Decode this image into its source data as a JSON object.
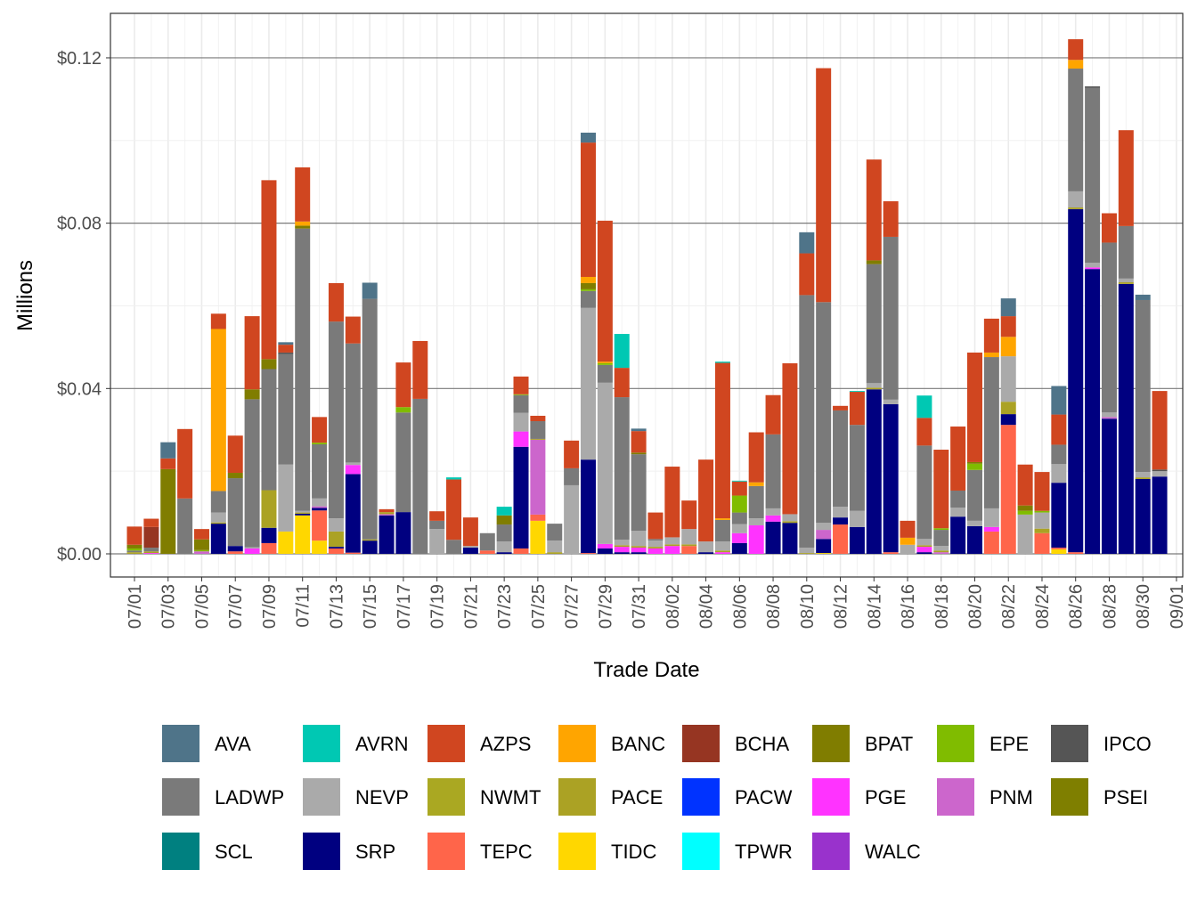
{
  "chart_data": {
    "type": "bar",
    "stacked": true,
    "xlabel": "Trade Date",
    "ylabel": "Millions",
    "ylim": [
      -0.0056,
      0.1308
    ],
    "y_ticks": [
      0,
      0.04,
      0.08,
      0.12
    ],
    "y_tick_labels": [
      "$0.00",
      "$0.04",
      "$0.08",
      "$0.12"
    ],
    "x_tick_labels": [
      "07/01",
      "07/03",
      "07/05",
      "07/07",
      "07/09",
      "07/11",
      "07/13",
      "07/15",
      "07/17",
      "07/19",
      "07/21",
      "07/23",
      "07/25",
      "07/27",
      "07/29",
      "07/31",
      "08/02",
      "08/04",
      "08/06",
      "08/08",
      "08/10",
      "08/12",
      "08/14",
      "08/16",
      "08/18",
      "08/20",
      "08/22",
      "08/24",
      "08/26",
      "08/28",
      "08/30",
      "09/01"
    ],
    "grid": true,
    "legend_position": "bottom",
    "legend": [
      "AVA",
      "AVRN",
      "AZPS",
      "BANC",
      "BCHA",
      "BPAT",
      "EPE",
      "IPCO",
      "LADWP",
      "NEVP",
      "NWMT",
      "PACE",
      "PACW",
      "PGE",
      "PNM",
      "PSEI",
      "SCL",
      "SRP",
      "TEPC",
      "TIDC",
      "TPWR",
      "WALC"
    ],
    "colors": {
      "AVA": "#4F7489",
      "AVRN": "#00C8B3",
      "AZPS": "#D04620",
      "BANC": "#FFA500",
      "BCHA": "#963522",
      "BPAT": "#807D00",
      "EPE": "#80BC00",
      "IPCO": "#555555",
      "LADWP": "#7A7A7A",
      "NEVP": "#AAAAAA",
      "NWMT": "#AAA822",
      "PACE": "#ABA224",
      "PACW": "#0033FF",
      "PGE": "#FF33FF",
      "PNM": "#CC66CC",
      "PSEI": "#7F7F00",
      "SCL": "#008080",
      "SRP": "#000080",
      "TEPC": "#FF654A",
      "TIDC": "#FFD700",
      "TPWR": "#00FFFF",
      "WALC": "#9932CC"
    },
    "bars": [
      {
        "date": "07/01",
        "segments": {
          "BPAT": 0.0009,
          "PACE": 0.0004,
          "LADWP": 0.0004,
          "EPE": 0.0005,
          "AZPS": 0.0044
        }
      },
      {
        "date": "07/02",
        "segments": {
          "PGE": 0.0002,
          "PACE": 0.0004,
          "LADWP": 0.0009,
          "BCHA": 0.005,
          "AZPS": 0.002
        }
      },
      {
        "date": "07/03",
        "segments": {
          "BPAT": 0.0205,
          "AZPS": 0.0026,
          "AVA": 0.0039
        }
      },
      {
        "date": "07/04",
        "segments": {
          "LADWP": 0.0134,
          "AZPS": 0.0168
        }
      },
      {
        "date": "07/05",
        "segments": {
          "BPAT": 0.0026,
          "PNM": 0.0006,
          "EPE": 0.0003,
          "AZPS": 0.0025
        }
      },
      {
        "date": "07/06",
        "segments": {
          "SRP": 0.0073,
          "PACE": 0.0003,
          "NEVP": 0.0024,
          "LADWP": 0.0052,
          "BANC": 0.0392,
          "AZPS": 0.0037
        }
      },
      {
        "date": "07/07",
        "segments": {
          "TEPC": 0.0006,
          "SRP": 0.0013,
          "BPAT": 0.0013,
          "LADWP": 0.0164,
          "AZPS": 0.009
        }
      },
      {
        "date": "07/08",
        "segments": {
          "BPAT": 0.0024,
          "PGE": 0.0013,
          "NEVP": 0.0003,
          "LADWP": 0.0358,
          "AZPS": 0.0177
        }
      },
      {
        "date": "07/09",
        "segments": {
          "TEPC": 0.0026,
          "SRP": 0.0037,
          "BPAT": 0.0024,
          "PACE": 0.0091,
          "LADWP": 0.0293,
          "AZPS": 0.0433
        }
      },
      {
        "date": "07/10",
        "segments": {
          "TIDC": 0.0054,
          "NEVP": 0.0162,
          "LADWP": 0.0267,
          "IPCO": 0.0004,
          "AZPS": 0.0019,
          "AVA": 0.0006
        }
      },
      {
        "date": "07/11",
        "segments": {
          "TIDC": 0.0093,
          "SRP": 0.0004,
          "BPAT": 0.0007,
          "PACE": 0.0003,
          "NEVP": 0.0004,
          "LADWP": 0.0683,
          "BANC": 0.001,
          "AZPS": 0.0131
        }
      },
      {
        "date": "07/12",
        "segments": {
          "TIDC": 0.0032,
          "TEPC": 0.0073,
          "SRP": 0.0006,
          "PNM": 0.0004,
          "NEVP": 0.0019,
          "LADWP": 0.0131,
          "EPE": 0.0004,
          "AZPS": 0.0062
        }
      },
      {
        "date": "07/13",
        "segments": {
          "TEPC": 0.0013,
          "SRP": 0.0004,
          "PACE": 0.0037,
          "NEVP": 0.0032,
          "LADWP": 0.0476,
          "AZPS": 0.0093
        }
      },
      {
        "date": "07/14",
        "segments": {
          "TEPC": 0.0003,
          "SRP": 0.019,
          "PGE": 0.0022,
          "NEVP": 0.0006,
          "LADWP": 0.0288,
          "AZPS": 0.0065
        }
      },
      {
        "date": "07/15",
        "segments": {
          "SRP": 0.0032,
          "PACE": 0.0003,
          "LADWP": 0.0582,
          "AVA": 0.0039
        }
      },
      {
        "date": "07/16",
        "segments": {
          "SRP": 0.0093,
          "PNM": 0.0003,
          "PACE": 0.0005,
          "AZPS": 0.0007
        }
      },
      {
        "date": "07/17",
        "segments": {
          "SRP": 0.0101,
          "LADWP": 0.0241,
          "EPE": 0.0013,
          "AZPS": 0.0108
        }
      },
      {
        "date": "07/18",
        "segments": {
          "LADWP": 0.0375,
          "AZPS": 0.014
        }
      },
      {
        "date": "07/19",
        "segments": {
          "NEVP": 0.006,
          "LADWP": 0.002,
          "AZPS": 0.0023
        }
      },
      {
        "date": "07/20",
        "segments": {
          "LADWP": 0.0034,
          "AZPS": 0.0146,
          "AVRN": 0.0005
        }
      },
      {
        "date": "07/21",
        "segments": {
          "SRP": 0.0015,
          "NEVP": 0.0004,
          "AZPS": 0.0069
        }
      },
      {
        "date": "07/22",
        "segments": {
          "TEPC": 0.0008,
          "LADWP": 0.0042
        }
      },
      {
        "date": "07/23",
        "segments": {
          "SRP": 0.0004,
          "BPAT": 0.0022,
          "NEVP": 0.0026,
          "LADWP": 0.0041,
          "AVRN": 0.0021
        }
      },
      {
        "date": "07/24",
        "segments": {
          "TEPC": 0.0013,
          "SRP": 0.0246,
          "PGE": 0.0037,
          "NEVP": 0.0045,
          "LADWP": 0.0043,
          "EPE": 0.0002,
          "AZPS": 0.0043
        }
      },
      {
        "date": "07/25",
        "segments": {
          "TIDC": 0.008,
          "TEPC": 0.0015,
          "PNM": 0.0181,
          "PACE": 0.0002,
          "LADWP": 0.0043,
          "AZPS": 0.0013
        }
      },
      {
        "date": "07/26",
        "segments": {
          "PACE": 0.0004,
          "NEVP": 0.0028,
          "LADWP": 0.0041
        }
      },
      {
        "date": "07/27",
        "segments": {
          "NEVP": 0.0166,
          "LADWP": 0.0041,
          "AZPS": 0.0067
        }
      },
      {
        "date": "07/28",
        "segments": {
          "TEPC": 0.0002,
          "SRP": 0.0226,
          "BPAT": 0.0015,
          "NEVP": 0.0367,
          "LADWP": 0.0041,
          "EPE": 0.0004,
          "BANC": 0.0015,
          "AZPS": 0.0325,
          "AVA": 0.0024
        }
      },
      {
        "date": "07/29",
        "segments": {
          "SRP": 0.0013,
          "PGE": 0.0011,
          "NEVP": 0.039,
          "LADWP": 0.0043,
          "EPE": 0.0004,
          "BANC": 0.0004,
          "AZPS": 0.0341
        }
      },
      {
        "date": "07/30",
        "segments": {
          "SRP": 0.0004,
          "PGE": 0.0013,
          "PACE": 0.0004,
          "NEVP": 0.0013,
          "LADWP": 0.0345,
          "AZPS": 0.0071,
          "AVRN": 0.0082
        }
      },
      {
        "date": "07/31",
        "segments": {
          "SRP": 0.0004,
          "BPAT": 0.0004,
          "PGE": 0.0011,
          "PACE": 0.0004,
          "NEVP": 0.0037,
          "LADWP": 0.0185,
          "AZPS": 0.0052,
          "AVA": 0.0006
        }
      },
      {
        "date": "08/01",
        "segments": {
          "PGE": 0.0013,
          "PACE": 0.0004,
          "NEVP": 0.0015,
          "LADWP": 0.0004,
          "AZPS": 0.0064
        }
      },
      {
        "date": "08/02",
        "segments": {
          "PGE": 0.0019,
          "PACE": 0.0004,
          "NEVP": 0.0017,
          "AZPS": 0.0171
        }
      },
      {
        "date": "08/03",
        "segments": {
          "TEPC": 0.0019,
          "PACE": 0.0004,
          "NEVP": 0.0037,
          "AZPS": 0.0069
        }
      },
      {
        "date": "08/04",
        "segments": {
          "SRP": 0.0004,
          "NEVP": 0.0026,
          "AZPS": 0.0198
        }
      },
      {
        "date": "08/05",
        "segments": {
          "PGE": 0.0004,
          "PACE": 0.0004,
          "NEVP": 0.0022,
          "LADWP": 0.0052,
          "BANC": 0.0004,
          "AZPS": 0.0376,
          "AVRN": 0.0003
        }
      },
      {
        "date": "08/06",
        "segments": {
          "SRP": 0.0026,
          "PGE": 0.0024,
          "NEVP": 0.0022,
          "LADWP": 0.0028,
          "EPE": 0.0041,
          "AZPS": 0.0034,
          "AVRN": 0.0002
        }
      },
      {
        "date": "08/07",
        "segments": {
          "PGE": 0.0069,
          "NEVP": 0.0017,
          "LADWP": 0.0078,
          "BANC": 0.0009,
          "AZPS": 0.0121
        }
      },
      {
        "date": "08/08",
        "segments": {
          "SRP": 0.0078,
          "PGE": 0.0015,
          "NEVP": 0.0017,
          "LADWP": 0.0179,
          "AZPS": 0.0095
        }
      },
      {
        "date": "08/09",
        "segments": {
          "SRP": 0.0075,
          "PACE": 0.0004,
          "NEVP": 0.0017,
          "AZPS": 0.0365
        }
      },
      {
        "date": "08/10",
        "segments": {
          "PACE": 0.0002,
          "NEVP": 0.0013,
          "LADWP": 0.0611,
          "AZPS": 0.0101,
          "AVA": 0.0051
        }
      },
      {
        "date": "08/11",
        "segments": {
          "TIDC": 0.0002,
          "SRP": 0.0034,
          "PNM": 0.0022,
          "NEVP": 0.0017,
          "LADWP": 0.0534,
          "AZPS": 0.0566
        }
      },
      {
        "date": "08/12",
        "segments": {
          "TEPC": 0.0071,
          "SRP": 0.0017,
          "NEVP": 0.0026,
          "LADWP": 0.0233,
          "AZPS": 0.0011
        }
      },
      {
        "date": "08/13",
        "segments": {
          "SRP": 0.0065,
          "NEVP": 0.0039,
          "LADWP": 0.0208,
          "AZPS": 0.008,
          "AVRN": 0.0002
        }
      },
      {
        "date": "08/14",
        "segments": {
          "SRP": 0.0398,
          "PACE": 0.0004,
          "NEVP": 0.0011,
          "LADWP": 0.0288,
          "BPAT": 0.0009,
          "AZPS": 0.0244
        }
      },
      {
        "date": "08/15",
        "segments": {
          "TEPC": 0.0004,
          "SRP": 0.0358,
          "NEVP": 0.0011,
          "LADWP": 0.0394,
          "AZPS": 0.0086
        }
      },
      {
        "date": "08/16",
        "segments": {
          "NEVP": 0.0022,
          "BANC": 0.0017,
          "AZPS": 0.0041
        }
      },
      {
        "date": "08/17",
        "segments": {
          "SRP": 0.0004,
          "PGE": 0.0013,
          "PACE": 0.0004,
          "NEVP": 0.0015,
          "LADWP": 0.0226,
          "AZPS": 0.0067,
          "AVRN": 0.0054
        }
      },
      {
        "date": "08/18",
        "segments": {
          "PNM": 0.0004,
          "PACE": 0.0004,
          "NEVP": 0.0011,
          "LADWP": 0.0039,
          "EPE": 0.0004,
          "AZPS": 0.019
        }
      },
      {
        "date": "08/19",
        "segments": {
          "SRP": 0.009,
          "NEVP": 0.0022,
          "LADWP": 0.0041,
          "AZPS": 0.0155
        }
      },
      {
        "date": "08/20",
        "segments": {
          "SRP": 0.0067,
          "BPAT": 0.0004,
          "NEVP": 0.0013,
          "LADWP": 0.0123,
          "EPE": 0.0015,
          "AZPS": 0.0265
        }
      },
      {
        "date": "08/21",
        "segments": {
          "TEPC": 0.0054,
          "PGE": 0.0011,
          "NEVP": 0.0045,
          "LADWP": 0.0366,
          "BANC": 0.0011,
          "AZPS": 0.0082
        }
      },
      {
        "date": "08/22",
        "segments": {
          "TEPC": 0.0312,
          "SRP": 0.0026,
          "PACE": 0.003,
          "NEVP": 0.011,
          "BANC": 0.0047,
          "AZPS": 0.005,
          "AVA": 0.0043
        }
      },
      {
        "date": "08/23",
        "segments": {
          "BPAT": 0.0013,
          "NEVP": 0.0095,
          "EPE": 0.0009,
          "AZPS": 0.0099
        }
      },
      {
        "date": "08/24",
        "segments": {
          "TEPC": 0.005,
          "PACE": 0.0011,
          "NEVP": 0.0039,
          "EPE": 0.0004,
          "AZPS": 0.0094
        }
      },
      {
        "date": "08/25",
        "segments": {
          "TIDC": 0.0011,
          "TEPC": 0.0004,
          "SRP": 0.0157,
          "NEVP": 0.0045,
          "LADWP": 0.0047,
          "AZPS": 0.0073,
          "AVA": 0.0069
        }
      },
      {
        "date": "08/26",
        "segments": {
          "TEPC": 0.0004,
          "SRP": 0.083,
          "PACE": 0.0004,
          "NEVP": 0.0039,
          "LADWP": 0.0297,
          "BANC": 0.0021,
          "AZPS": 0.005
        }
      },
      {
        "date": "08/27",
        "segments": {
          "SRP": 0.0689,
          "PGE": 0.0004,
          "NEVP": 0.0011,
          "LADWP": 0.0423,
          "IPCO": 0.0004
        }
      },
      {
        "date": "08/28",
        "segments": {
          "SRP": 0.0327,
          "PNM": 0.0004,
          "NEVP": 0.0011,
          "LADWP": 0.0411,
          "AZPS": 0.0071
        }
      },
      {
        "date": "08/29",
        "segments": {
          "SRP": 0.0653,
          "PACE": 0.0004,
          "NEVP": 0.0009,
          "LADWP": 0.0127,
          "AZPS": 0.0232
        }
      },
      {
        "date": "08/30",
        "segments": {
          "SRP": 0.0181,
          "PACE": 0.0004,
          "NEVP": 0.0013,
          "LADWP": 0.0416,
          "AVA": 0.0013
        }
      },
      {
        "date": "08/31",
        "segments": {
          "SRP": 0.0187,
          "NEVP": 0.0013,
          "IPCO": 0.0004,
          "AZPS": 0.019
        }
      }
    ]
  }
}
